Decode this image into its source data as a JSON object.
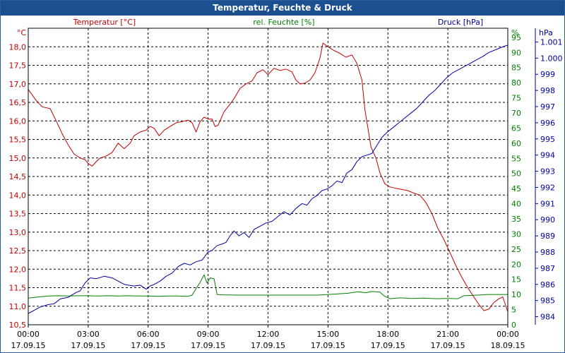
{
  "window": {
    "title": "Temperatur, Feuchte & Druck"
  },
  "colors": {
    "temperature": "#c00000",
    "humidity": "#008000",
    "pressure": "#0000a0",
    "title_bg": "#1b4f8f"
  },
  "chart_data": {
    "type": "line",
    "title": "Temperatur, Feuchte & Druck",
    "legend": {
      "temperature": "Temperatur [°C]",
      "humidity": "rel. Feuchte [%]",
      "pressure": "Druck [hPa]"
    },
    "units": {
      "left": "°C",
      "right": "%",
      "far_right": "hPa"
    },
    "x_labels": [
      {
        "time": "00:00",
        "date": "17.09.15"
      },
      {
        "time": "03:00",
        "date": "17.09.15"
      },
      {
        "time": "06:00",
        "date": "17.09.15"
      },
      {
        "time": "09:00",
        "date": "17.09.15"
      },
      {
        "time": "12:00",
        "date": "17.09.15"
      },
      {
        "time": "15:00",
        "date": "17.09.15"
      },
      {
        "time": "18:00",
        "date": "17.09.15"
      },
      {
        "time": "21:00",
        "date": "17.09.15"
      },
      {
        "time": "00:00",
        "date": "18.09.15"
      }
    ],
    "x_range_hours": [
      0,
      24
    ],
    "temp_axis": {
      "range": [
        10.5,
        18.5
      ],
      "ticks": [
        "10,5",
        "11,0",
        "11,5",
        "12,0",
        "12,5",
        "13,0",
        "13,5",
        "14,0",
        "14,5",
        "15,0",
        "15,5",
        "16,0",
        "16,5",
        "17,0",
        "17,5",
        "18,0"
      ]
    },
    "humidity_axis": {
      "range": [
        0,
        98
      ],
      "ticks": [
        "0",
        "5",
        "10",
        "15",
        "20",
        "25",
        "30",
        "35",
        "40",
        "45",
        "50",
        "55",
        "60",
        "65",
        "70",
        "75",
        "80",
        "85",
        "90",
        "95"
      ]
    },
    "pressure_axis": {
      "range": [
        983.5,
        1001.85
      ],
      "ticks": [
        "984",
        "985",
        "986",
        "987",
        "988",
        "989",
        "990",
        "991",
        "992",
        "993",
        "994",
        "995",
        "996",
        "997",
        "998",
        "999",
        "1.000",
        "1.001"
      ]
    },
    "series": [
      {
        "name": "Temperatur",
        "axis": "temperature",
        "points": [
          [
            0,
            16.85
          ],
          [
            0.4,
            16.55
          ],
          [
            0.7,
            16.38
          ],
          [
            1.1,
            16.33
          ],
          [
            1.4,
            16.0
          ],
          [
            1.7,
            15.65
          ],
          [
            2.0,
            15.35
          ],
          [
            2.3,
            15.1
          ],
          [
            2.6,
            15.0
          ],
          [
            2.85,
            14.95
          ],
          [
            3.0,
            14.85
          ],
          [
            3.2,
            14.78
          ],
          [
            3.4,
            14.9
          ],
          [
            3.6,
            15.0
          ],
          [
            3.9,
            15.05
          ],
          [
            4.2,
            15.15
          ],
          [
            4.5,
            15.4
          ],
          [
            4.8,
            15.25
          ],
          [
            5.1,
            15.4
          ],
          [
            5.3,
            15.6
          ],
          [
            5.6,
            15.7
          ],
          [
            5.9,
            15.75
          ],
          [
            6.1,
            15.85
          ],
          [
            6.3,
            15.8
          ],
          [
            6.55,
            15.6
          ],
          [
            6.8,
            15.75
          ],
          [
            7.1,
            15.85
          ],
          [
            7.4,
            15.95
          ],
          [
            7.7,
            15.98
          ],
          [
            8.0,
            16.02
          ],
          [
            8.2,
            15.95
          ],
          [
            8.4,
            15.7
          ],
          [
            8.6,
            15.98
          ],
          [
            8.8,
            16.1
          ],
          [
            9.0,
            16.05
          ],
          [
            9.2,
            16.05
          ],
          [
            9.35,
            15.85
          ],
          [
            9.5,
            15.88
          ],
          [
            9.8,
            16.25
          ],
          [
            10.1,
            16.45
          ],
          [
            10.3,
            16.6
          ],
          [
            10.6,
            16.88
          ],
          [
            10.9,
            17.0
          ],
          [
            11.2,
            17.08
          ],
          [
            11.45,
            17.3
          ],
          [
            11.75,
            17.38
          ],
          [
            12.0,
            17.25
          ],
          [
            12.3,
            17.42
          ],
          [
            12.6,
            17.36
          ],
          [
            12.9,
            17.4
          ],
          [
            13.2,
            17.32
          ],
          [
            13.4,
            17.1
          ],
          [
            13.6,
            17.0
          ],
          [
            13.85,
            17.02
          ],
          [
            14.1,
            17.1
          ],
          [
            14.35,
            17.3
          ],
          [
            14.6,
            17.7
          ],
          [
            14.75,
            18.1
          ],
          [
            15.0,
            18.0
          ],
          [
            15.3,
            17.9
          ],
          [
            15.6,
            17.82
          ],
          [
            15.9,
            17.72
          ],
          [
            16.2,
            17.78
          ],
          [
            16.45,
            17.55
          ],
          [
            16.7,
            17.1
          ],
          [
            16.85,
            16.3
          ],
          [
            17.0,
            15.8
          ],
          [
            17.15,
            15.3
          ],
          [
            17.4,
            15.0
          ],
          [
            17.6,
            14.6
          ],
          [
            17.85,
            14.3
          ],
          [
            18.1,
            14.22
          ],
          [
            18.4,
            14.18
          ],
          [
            18.7,
            14.15
          ],
          [
            19.0,
            14.12
          ],
          [
            19.3,
            14.05
          ],
          [
            19.6,
            14.0
          ],
          [
            19.9,
            13.8
          ],
          [
            20.2,
            13.5
          ],
          [
            20.5,
            13.1
          ],
          [
            20.8,
            12.8
          ],
          [
            21.1,
            12.45
          ],
          [
            21.4,
            12.1
          ],
          [
            21.7,
            11.78
          ],
          [
            22.0,
            11.5
          ],
          [
            22.3,
            11.25
          ],
          [
            22.55,
            11.05
          ],
          [
            22.8,
            10.88
          ],
          [
            23.05,
            10.92
          ],
          [
            23.3,
            11.1
          ],
          [
            23.55,
            11.2
          ],
          [
            23.75,
            11.25
          ],
          [
            24.0,
            10.85
          ]
        ]
      },
      {
        "name": "rel. Feuchte",
        "axis": "humidity",
        "points": [
          [
            0,
            8.8
          ],
          [
            0.5,
            9.2
          ],
          [
            1.0,
            9.5
          ],
          [
            1.5,
            9.6
          ],
          [
            2.0,
            9.5
          ],
          [
            2.5,
            9.6
          ],
          [
            3.0,
            9.6
          ],
          [
            3.5,
            9.5
          ],
          [
            4.0,
            9.6
          ],
          [
            4.5,
            9.5
          ],
          [
            5.0,
            9.6
          ],
          [
            5.5,
            9.5
          ],
          [
            6.0,
            9.5
          ],
          [
            6.5,
            9.4
          ],
          [
            7.0,
            9.5
          ],
          [
            7.5,
            9.5
          ],
          [
            8.0,
            9.4
          ],
          [
            8.2,
            9.8
          ],
          [
            8.4,
            12.0
          ],
          [
            8.6,
            14.0
          ],
          [
            8.8,
            16.5
          ],
          [
            8.95,
            13.8
          ],
          [
            9.1,
            15.5
          ],
          [
            9.3,
            15.2
          ],
          [
            9.45,
            10.0
          ],
          [
            9.7,
            9.9
          ],
          [
            10.5,
            9.8
          ],
          [
            11.5,
            9.8
          ],
          [
            12.5,
            9.8
          ],
          [
            13.5,
            9.8
          ],
          [
            14.5,
            9.8
          ],
          [
            15.0,
            10.0
          ],
          [
            15.5,
            10.2
          ],
          [
            16.0,
            10.4
          ],
          [
            16.5,
            10.9
          ],
          [
            16.9,
            10.6
          ],
          [
            17.2,
            11.0
          ],
          [
            17.6,
            10.8
          ],
          [
            17.8,
            9.6
          ],
          [
            18.1,
            8.6
          ],
          [
            18.6,
            8.9
          ],
          [
            19.2,
            8.7
          ],
          [
            19.8,
            8.8
          ],
          [
            20.4,
            8.6
          ],
          [
            21.0,
            8.7
          ],
          [
            21.5,
            8.6
          ],
          [
            21.8,
            9.6
          ],
          [
            22.5,
            9.8
          ],
          [
            23.0,
            10.0
          ],
          [
            23.5,
            10.0
          ],
          [
            24.0,
            10.0
          ]
        ]
      },
      {
        "name": "Druck",
        "axis": "pressure",
        "points": [
          [
            0,
            984.2
          ],
          [
            0.3,
            984.4
          ],
          [
            0.6,
            984.6
          ],
          [
            1.0,
            984.75
          ],
          [
            1.3,
            984.8
          ],
          [
            1.6,
            985.1
          ],
          [
            2.0,
            985.2
          ],
          [
            2.4,
            985.5
          ],
          [
            2.6,
            985.6
          ],
          [
            2.85,
            986.1
          ],
          [
            3.1,
            986.4
          ],
          [
            3.4,
            986.35
          ],
          [
            3.8,
            986.5
          ],
          [
            4.2,
            986.4
          ],
          [
            4.5,
            986.2
          ],
          [
            4.8,
            986.0
          ],
          [
            5.0,
            985.95
          ],
          [
            5.3,
            985.9
          ],
          [
            5.6,
            985.95
          ],
          [
            5.9,
            985.7
          ],
          [
            6.1,
            985.9
          ],
          [
            6.3,
            986.0
          ],
          [
            6.6,
            986.2
          ],
          [
            6.9,
            986.5
          ],
          [
            7.2,
            986.7
          ],
          [
            7.5,
            987.1
          ],
          [
            7.8,
            987.3
          ],
          [
            8.1,
            987.2
          ],
          [
            8.4,
            987.4
          ],
          [
            8.7,
            987.5
          ],
          [
            9.0,
            988.0
          ],
          [
            9.2,
            988.1
          ],
          [
            9.45,
            988.4
          ],
          [
            9.7,
            988.5
          ],
          [
            9.9,
            988.6
          ],
          [
            10.1,
            989.0
          ],
          [
            10.3,
            989.3
          ],
          [
            10.55,
            989.0
          ],
          [
            10.8,
            989.2
          ],
          [
            11.05,
            988.9
          ],
          [
            11.3,
            989.4
          ],
          [
            11.6,
            989.6
          ],
          [
            11.9,
            989.8
          ],
          [
            12.2,
            989.9
          ],
          [
            12.5,
            990.2
          ],
          [
            12.8,
            990.5
          ],
          [
            13.1,
            990.3
          ],
          [
            13.4,
            990.7
          ],
          [
            13.7,
            991.0
          ],
          [
            13.95,
            990.9
          ],
          [
            14.2,
            991.3
          ],
          [
            14.45,
            991.5
          ],
          [
            14.7,
            991.8
          ],
          [
            14.95,
            991.9
          ],
          [
            15.2,
            992.1
          ],
          [
            15.45,
            992.4
          ],
          [
            15.7,
            992.3
          ],
          [
            15.95,
            992.9
          ],
          [
            16.2,
            993.1
          ],
          [
            16.45,
            993.6
          ],
          [
            16.7,
            993.9
          ],
          [
            16.95,
            994.0
          ],
          [
            17.2,
            994.1
          ],
          [
            17.45,
            994.6
          ],
          [
            17.7,
            995.1
          ],
          [
            17.95,
            995.4
          ],
          [
            18.25,
            995.7
          ],
          [
            18.55,
            996.0
          ],
          [
            18.85,
            996.3
          ],
          [
            19.15,
            996.6
          ],
          [
            19.45,
            996.9
          ],
          [
            19.75,
            997.3
          ],
          [
            20.05,
            997.7
          ],
          [
            20.35,
            998.0
          ],
          [
            20.65,
            998.4
          ],
          [
            20.95,
            998.8
          ],
          [
            21.25,
            999.1
          ],
          [
            21.55,
            999.3
          ],
          [
            21.85,
            999.5
          ],
          [
            22.15,
            999.7
          ],
          [
            22.45,
            999.9
          ],
          [
            22.75,
            1000.1
          ],
          [
            23.05,
            1000.35
          ],
          [
            23.35,
            1000.5
          ],
          [
            23.65,
            1000.65
          ],
          [
            23.85,
            1000.75
          ],
          [
            24.0,
            1000.8
          ]
        ]
      }
    ]
  }
}
